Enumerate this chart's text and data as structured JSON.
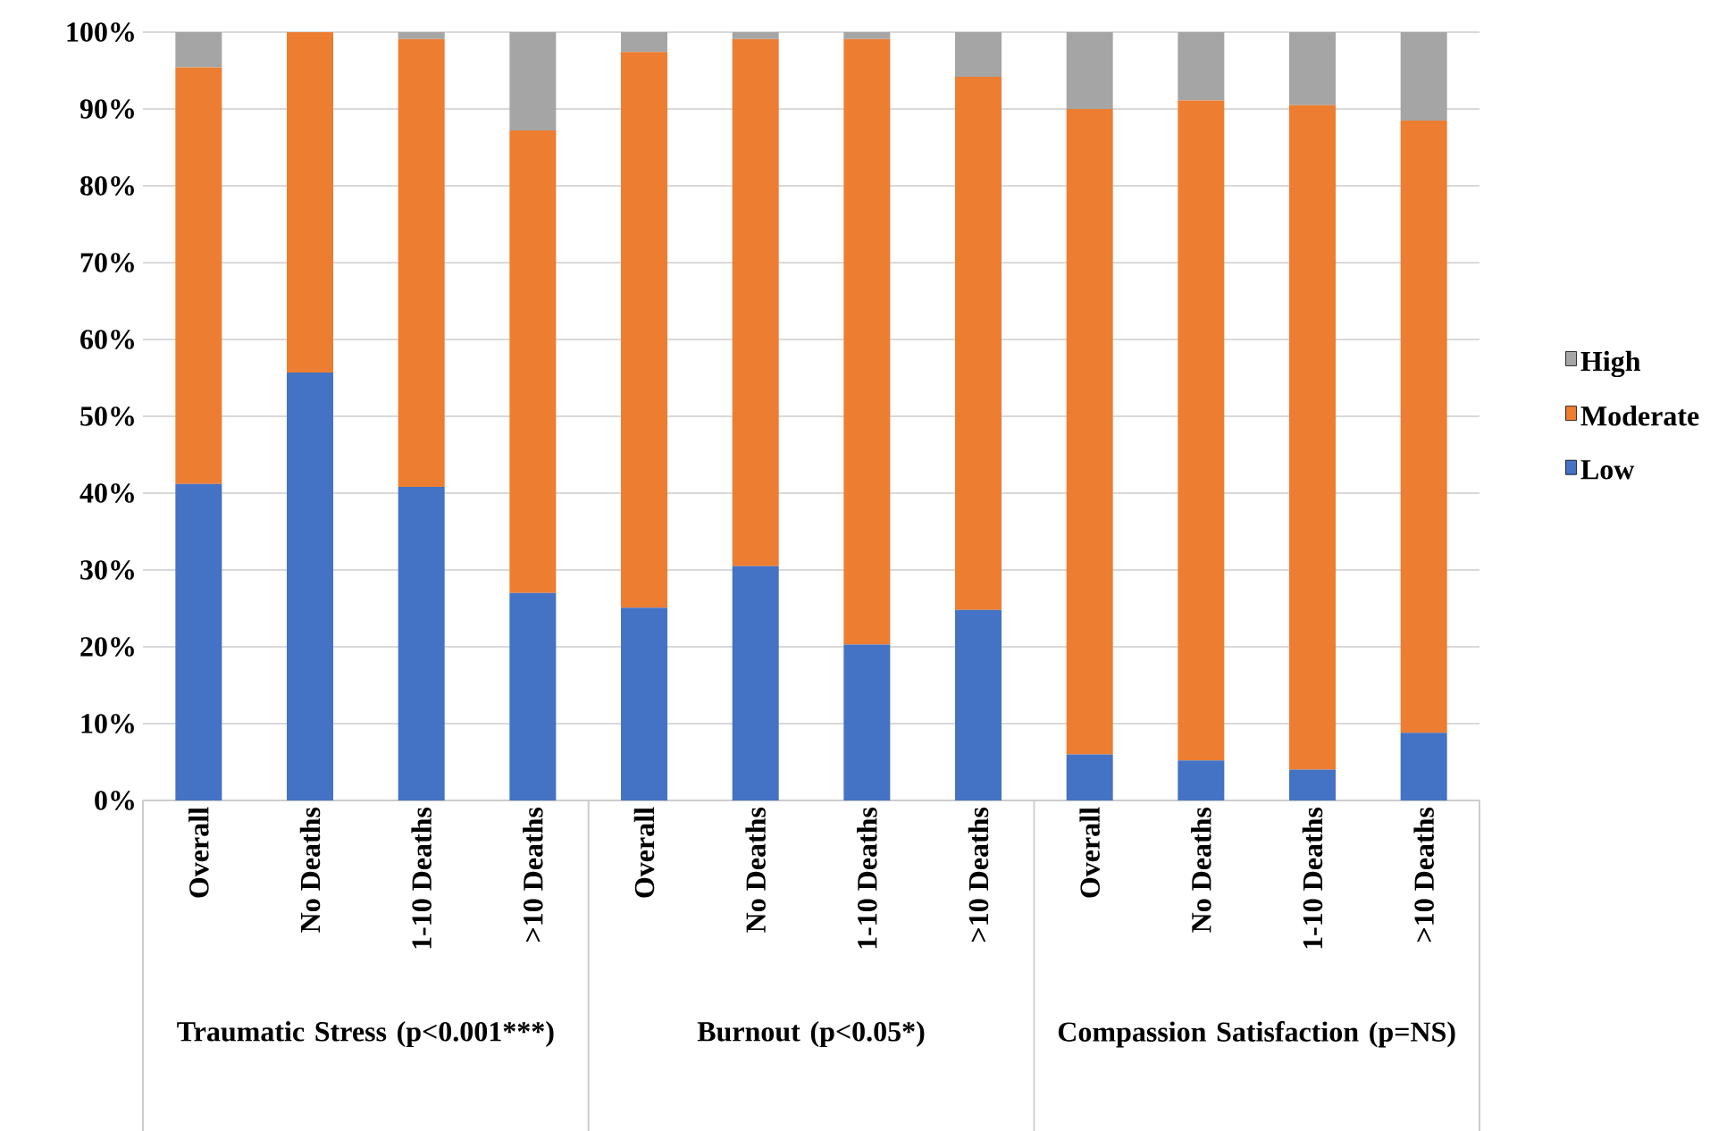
{
  "chart_data": {
    "type": "bar",
    "stacked": true,
    "categories": [
      "Overall",
      "No Deaths",
      "1-10 Deaths",
      ">10 Deaths",
      "Overall",
      "No Deaths",
      "1-10 Deaths",
      ">10 Deaths",
      "Overall",
      "No Deaths",
      "1-10 Deaths",
      ">10 Deaths"
    ],
    "series": [
      {
        "name": "Low",
        "color": "#4472c4",
        "values": [
          41.2,
          55.7,
          40.8,
          27.0,
          25.1,
          30.5,
          20.3,
          24.8,
          6.0,
          5.2,
          4.0,
          8.8
        ]
      },
      {
        "name": "Moderate",
        "color": "#ed7d31",
        "values": [
          54.2,
          44.3,
          58.3,
          60.2,
          72.3,
          68.6,
          78.8,
          69.4,
          84.0,
          85.9,
          86.5,
          79.7
        ]
      },
      {
        "name": "High",
        "color": "#a5a5a5",
        "values": [
          4.6,
          0,
          0.9,
          12.8,
          2.6,
          0.9,
          0.9,
          5.8,
          10.0,
          8.9,
          9.5,
          11.5
        ]
      }
    ],
    "ylim": [
      0,
      100
    ],
    "yticks": [
      {
        "value": 0,
        "label": "0%"
      },
      {
        "value": 10,
        "label": "10%"
      },
      {
        "value": 20,
        "label": "20%"
      },
      {
        "value": 30,
        "label": "30%"
      },
      {
        "value": 40,
        "label": "40%"
      },
      {
        "value": 50,
        "label": "50%"
      },
      {
        "value": 60,
        "label": "60%"
      },
      {
        "value": 70,
        "label": "70%"
      },
      {
        "value": 80,
        "label": "80%"
      },
      {
        "value": 90,
        "label": "90%"
      },
      {
        "value": 100,
        "label": "100%"
      }
    ],
    "grid": "y",
    "legend": "right",
    "annotations": [
      "Traumatic Stress (p<0.001***)",
      "Burnout (p<0.05*)",
      "Compassion Satisfaction (p=NS)"
    ]
  }
}
